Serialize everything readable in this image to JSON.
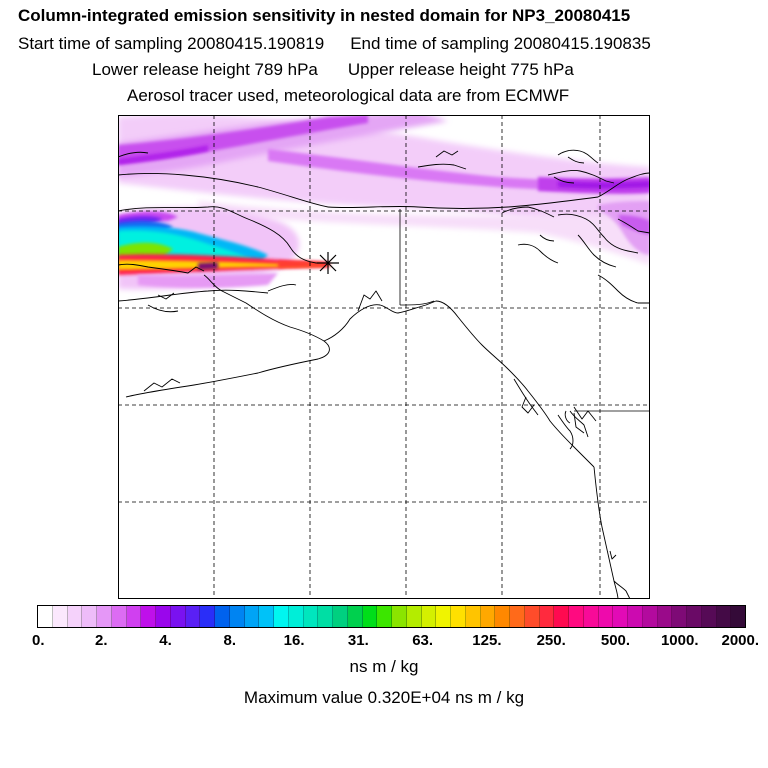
{
  "header": {
    "title": "Column-integrated emission sensitivity in nested domain for NP3_20080415",
    "start_time": "Start time of sampling 20080415.190819",
    "end_time": "End time of sampling 20080415.190835",
    "lower_release": "Lower release height  789 hPa",
    "upper_release": "Upper release height  775 hPa",
    "tracer_info": "Aerosol tracer used, meteorological data are from ECMWF"
  },
  "map": {
    "release_marker": "star",
    "gridlines": "dashed",
    "colors": {
      "frame": "#000000",
      "coastline": "#000000",
      "gridline": "#000000"
    }
  },
  "colorbar": {
    "tick_labels": [
      "0.",
      "2.",
      "4.",
      "8.",
      "16.",
      "31.",
      "63.",
      "125.",
      "250.",
      "500.",
      "1000.",
      "2000."
    ],
    "units": "ns m / kg",
    "colors": [
      "#ffffff",
      "#fbe8fd",
      "#f5d2fb",
      "#eebcf9",
      "#e597f7",
      "#dc6cf3",
      "#d040f0",
      "#bf10ea",
      "#9a06ec",
      "#7a12f0",
      "#5a20f5",
      "#2a2ef8",
      "#0062ee",
      "#0084f2",
      "#00a4f6",
      "#00c2f8",
      "#00f6f0",
      "#00eed8",
      "#00e6be",
      "#00dea4",
      "#00d080",
      "#00d04e",
      "#00de1a",
      "#3ce600",
      "#8ae400",
      "#b4ec00",
      "#d4f000",
      "#f0f400",
      "#ffe000",
      "#ffc400",
      "#ffa800",
      "#ff8800",
      "#ff6a1a",
      "#ff4c2a",
      "#ff2a3e",
      "#ff0a50",
      "#ff0a80",
      "#f80a98",
      "#ee0aac",
      "#e20ab6",
      "#cc0ab0",
      "#b30a9e",
      "#9a0a8a",
      "#7e0a76",
      "#6a0a66",
      "#560a56",
      "#440a46",
      "#340a38"
    ]
  },
  "footer": {
    "max_value": "Maximum value  0.320E+04 ns m / kg"
  }
}
